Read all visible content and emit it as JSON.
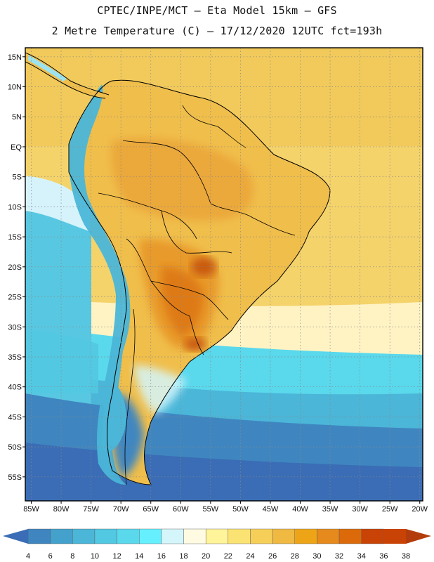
{
  "header": {
    "title_line1": "CPTEC/INPE/MCT —  Eta Model 15km — GFS",
    "title_line2": "2 Metre Temperature (C) — 17/12/2020 12UTC fct=193h"
  },
  "map": {
    "lat_labels": [
      "15N",
      "10N",
      "5N",
      "EQ",
      "5S",
      "10S",
      "15S",
      "20S",
      "25S",
      "30S",
      "35S",
      "40S",
      "45S",
      "50S",
      "55S"
    ],
    "lon_labels": [
      "85W",
      "80W",
      "75W",
      "70W",
      "65W",
      "60W",
      "55W",
      "50W",
      "45W",
      "40W",
      "35W",
      "30W",
      "25W",
      "20W"
    ],
    "lat_values": [
      15,
      10,
      5,
      0,
      -5,
      -10,
      -15,
      -20,
      -25,
      -30,
      -35,
      -40,
      -45,
      -50,
      -55
    ],
    "lon_values": [
      -85,
      -80,
      -75,
      -70,
      -65,
      -60,
      -55,
      -50,
      -45,
      -40,
      -35,
      -30,
      -25,
      -20
    ],
    "ocean_color": "#f5d36b",
    "frame_color": "#000000"
  },
  "colorbar": {
    "labels": [
      "4",
      "6",
      "8",
      "10",
      "12",
      "14",
      "16",
      "18",
      "20",
      "22",
      "24",
      "26",
      "28",
      "30",
      "32",
      "34",
      "36",
      "38"
    ],
    "colors": [
      "#3a6db5",
      "#3f86c0",
      "#44a1cc",
      "#4bb6d8",
      "#52c8e2",
      "#5ad8ec",
      "#66f0ff",
      "#d4f6fb",
      "#fffbe2",
      "#fff49a",
      "#fbe373",
      "#f6cf58",
      "#efb942",
      "#eda517",
      "#e68a1d",
      "#dc6a0a",
      "#c94206",
      "#b33c0c"
    ]
  }
}
